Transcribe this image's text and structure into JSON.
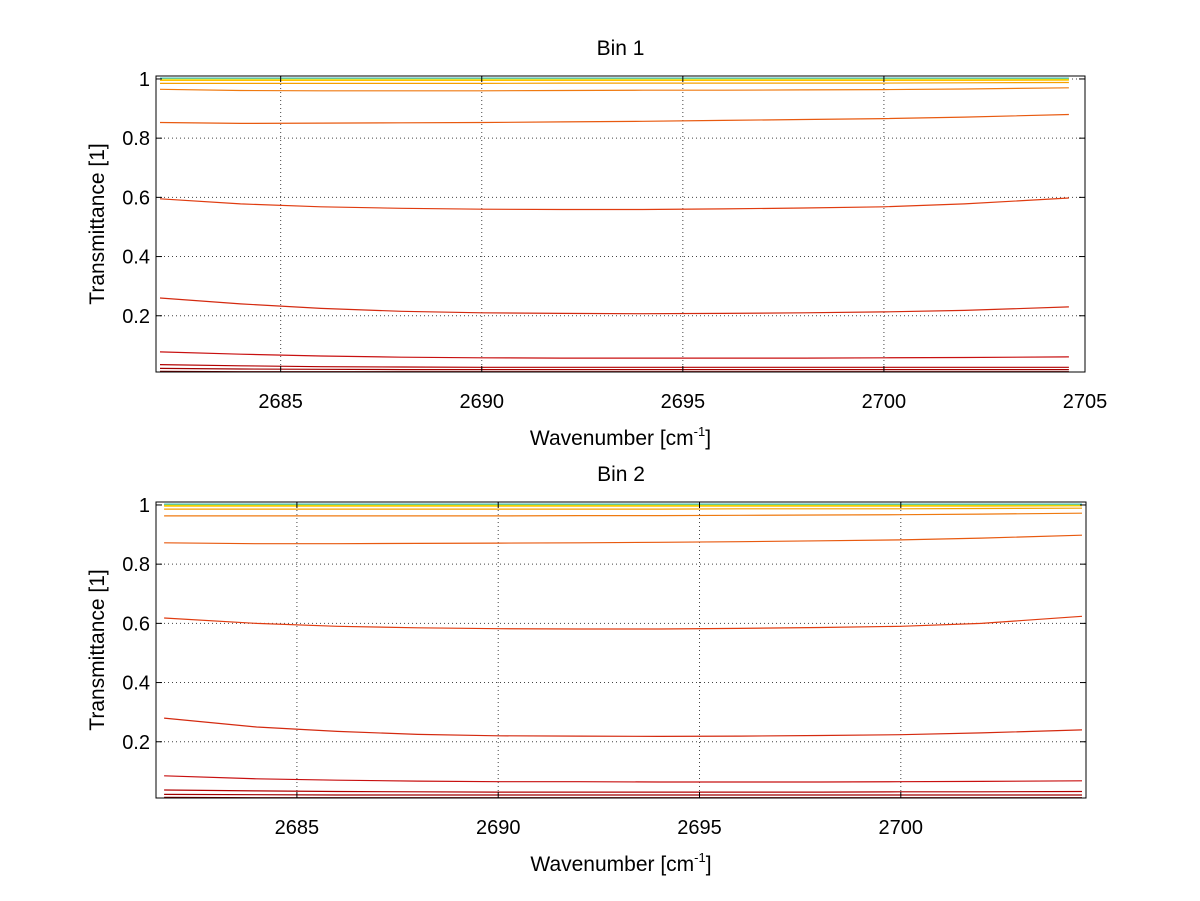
{
  "chart_data": [
    {
      "type": "line",
      "title": "Bin 1",
      "xlabel": "Wavenumber [cm",
      "xlabel_sup": "-1",
      "xlabel_end": "]",
      "ylabel": "Transmittance [1]",
      "xlim": [
        2681.9,
        2705
      ],
      "ylim": [
        0.01,
        1.01
      ],
      "xticks": [
        2685,
        2690,
        2695,
        2700,
        2705
      ],
      "yticks": [
        0.2,
        0.4,
        0.6,
        0.8,
        1
      ],
      "xtick_labels": [
        "2685",
        "2690",
        "2695",
        "2700",
        "2705"
      ],
      "ytick_labels": [
        "0.2",
        "0.4",
        "0.6",
        "0.8",
        "1"
      ],
      "grid": true,
      "x": [
        2682,
        2684,
        2686,
        2688,
        2690,
        2692,
        2694,
        2696,
        2698,
        2700,
        2702,
        2704.6
      ],
      "series": [
        {
          "color": "#8b0000",
          "values": [
            0.012,
            0.011,
            0.011,
            0.011,
            0.011,
            0.011,
            0.011,
            0.011,
            0.011,
            0.011,
            0.011,
            0.011
          ]
        },
        {
          "color": "#a00000",
          "values": [
            0.022,
            0.02,
            0.019,
            0.018,
            0.018,
            0.018,
            0.018,
            0.018,
            0.018,
            0.018,
            0.018,
            0.018
          ]
        },
        {
          "color": "#b30000",
          "values": [
            0.035,
            0.031,
            0.028,
            0.027,
            0.026,
            0.026,
            0.026,
            0.026,
            0.026,
            0.026,
            0.026,
            0.026
          ]
        },
        {
          "color": "#c81010",
          "values": [
            0.078,
            0.07,
            0.064,
            0.06,
            0.058,
            0.057,
            0.057,
            0.057,
            0.057,
            0.058,
            0.059,
            0.061
          ]
        },
        {
          "color": "#d42a10",
          "values": [
            0.26,
            0.24,
            0.225,
            0.215,
            0.21,
            0.208,
            0.207,
            0.208,
            0.21,
            0.213,
            0.218,
            0.23
          ]
        },
        {
          "color": "#e03c10",
          "values": [
            0.595,
            0.578,
            0.568,
            0.563,
            0.56,
            0.559,
            0.559,
            0.561,
            0.564,
            0.568,
            0.578,
            0.598
          ]
        },
        {
          "color": "#e85a10",
          "values": [
            0.853,
            0.85,
            0.851,
            0.852,
            0.853,
            0.855,
            0.857,
            0.86,
            0.863,
            0.866,
            0.871,
            0.88
          ]
        },
        {
          "color": "#ef7a10",
          "values": [
            0.965,
            0.961,
            0.96,
            0.96,
            0.96,
            0.961,
            0.962,
            0.962,
            0.963,
            0.964,
            0.966,
            0.97
          ]
        },
        {
          "color": "#f5a000",
          "values": [
            0.985,
            0.985,
            0.985,
            0.985,
            0.985,
            0.986,
            0.986,
            0.986,
            0.986,
            0.986,
            0.987,
            0.988
          ]
        },
        {
          "color": "#ffc000",
          "values": [
            0.995,
            0.995,
            0.995,
            0.995,
            0.995,
            0.995,
            0.995,
            0.995,
            0.995,
            0.995,
            0.995,
            0.996
          ]
        },
        {
          "color": "#e0e000",
          "values": [
            1.0,
            1.0,
            1.0,
            1.0,
            1.0,
            1.0,
            1.0,
            1.0,
            1.0,
            1.0,
            1.0,
            1.0
          ]
        },
        {
          "color": "#40c0c0",
          "values": [
            1.003,
            1.003,
            1.003,
            1.003,
            1.003,
            1.003,
            1.003,
            1.003,
            1.003,
            1.003,
            1.003,
            1.003
          ]
        }
      ]
    },
    {
      "type": "line",
      "title": "Bin 2",
      "xlabel": "Wavenumber [cm",
      "xlabel_sup": "-1",
      "xlabel_end": "]",
      "ylabel": "Transmittance [1]",
      "xlim": [
        2681.5,
        2704.6
      ],
      "ylim": [
        0.01,
        1.01
      ],
      "xticks": [
        2685,
        2690,
        2695,
        2700
      ],
      "yticks": [
        0.2,
        0.4,
        0.6,
        0.8,
        1
      ],
      "xtick_labels": [
        "2685",
        "2690",
        "2695",
        "2700"
      ],
      "ytick_labels": [
        "0.2",
        "0.4",
        "0.6",
        "0.8",
        "1"
      ],
      "grid": true,
      "x": [
        2681.7,
        2684,
        2686,
        2688,
        2690,
        2692,
        2694,
        2696,
        2698,
        2700,
        2702,
        2704.5
      ],
      "series": [
        {
          "color": "#8b0000",
          "values": [
            0.012,
            0.011,
            0.011,
            0.011,
            0.011,
            0.011,
            0.011,
            0.011,
            0.011,
            0.011,
            0.011,
            0.011
          ]
        },
        {
          "color": "#a00000",
          "values": [
            0.022,
            0.021,
            0.02,
            0.02,
            0.02,
            0.02,
            0.02,
            0.02,
            0.02,
            0.02,
            0.02,
            0.02
          ]
        },
        {
          "color": "#b30000",
          "values": [
            0.037,
            0.034,
            0.032,
            0.031,
            0.03,
            0.03,
            0.03,
            0.03,
            0.03,
            0.031,
            0.031,
            0.032
          ]
        },
        {
          "color": "#c81010",
          "values": [
            0.085,
            0.075,
            0.07,
            0.067,
            0.065,
            0.065,
            0.064,
            0.064,
            0.064,
            0.065,
            0.066,
            0.068
          ]
        },
        {
          "color": "#d42a10",
          "values": [
            0.28,
            0.25,
            0.235,
            0.225,
            0.22,
            0.219,
            0.218,
            0.219,
            0.221,
            0.224,
            0.23,
            0.24
          ]
        },
        {
          "color": "#e03c10",
          "values": [
            0.618,
            0.6,
            0.59,
            0.585,
            0.582,
            0.581,
            0.581,
            0.583,
            0.586,
            0.59,
            0.6,
            0.624
          ]
        },
        {
          "color": "#e85a10",
          "values": [
            0.872,
            0.869,
            0.869,
            0.87,
            0.871,
            0.872,
            0.874,
            0.876,
            0.879,
            0.882,
            0.888,
            0.898
          ]
        },
        {
          "color": "#ef7a10",
          "values": [
            0.963,
            0.963,
            0.963,
            0.963,
            0.963,
            0.964,
            0.964,
            0.965,
            0.966,
            0.967,
            0.969,
            0.972
          ]
        },
        {
          "color": "#f5a000",
          "values": [
            0.986,
            0.986,
            0.986,
            0.986,
            0.986,
            0.986,
            0.986,
            0.987,
            0.987,
            0.987,
            0.988,
            0.989
          ]
        },
        {
          "color": "#ffc000",
          "values": [
            0.996,
            0.996,
            0.996,
            0.996,
            0.996,
            0.996,
            0.996,
            0.996,
            0.996,
            0.996,
            0.996,
            0.997
          ]
        },
        {
          "color": "#e0e000",
          "values": [
            1.0,
            1.0,
            1.0,
            1.0,
            1.0,
            1.0,
            1.0,
            1.0,
            1.0,
            1.0,
            1.0,
            1.0
          ]
        },
        {
          "color": "#40c0c0",
          "values": [
            1.003,
            1.003,
            1.003,
            1.003,
            1.003,
            1.003,
            1.003,
            1.003,
            1.003,
            1.003,
            1.003,
            1.003
          ]
        }
      ]
    }
  ]
}
